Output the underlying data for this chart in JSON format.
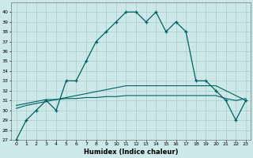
{
  "xlabel": "Humidex (Indice chaleur)",
  "background_color": "#cce8e8",
  "grid_color": "#aacccc",
  "line_color": "#006060",
  "x_values": [
    0,
    1,
    2,
    3,
    4,
    5,
    6,
    7,
    8,
    9,
    10,
    11,
    12,
    13,
    14,
    15,
    16,
    17,
    18,
    19,
    20,
    21,
    22,
    23
  ],
  "y_main": [
    27,
    29,
    30,
    31,
    30,
    33,
    33,
    35,
    37,
    38,
    39,
    40,
    40,
    39,
    40,
    38,
    39,
    38,
    33,
    33,
    32,
    31,
    29,
    31
  ],
  "y_reg1": [
    30.2,
    30.5,
    30.7,
    30.9,
    31.1,
    31.3,
    31.5,
    31.7,
    31.9,
    32.1,
    32.3,
    32.5,
    32.5,
    32.5,
    32.5,
    32.5,
    32.5,
    32.5,
    32.5,
    32.5,
    32.5,
    32.0,
    31.5,
    31.0
  ],
  "y_reg2": [
    30.5,
    30.7,
    30.9,
    31.1,
    31.1,
    31.2,
    31.2,
    31.3,
    31.3,
    31.4,
    31.4,
    31.5,
    31.5,
    31.5,
    31.5,
    31.5,
    31.5,
    31.5,
    31.5,
    31.5,
    31.5,
    31.2,
    31.0,
    31.2
  ],
  "ylim": [
    27,
    41
  ],
  "xlim": [
    -0.5,
    23.5
  ],
  "yticks": [
    27,
    28,
    29,
    30,
    31,
    32,
    33,
    34,
    35,
    36,
    37,
    38,
    39,
    40
  ],
  "xticks": [
    0,
    1,
    2,
    3,
    4,
    5,
    6,
    7,
    8,
    9,
    10,
    11,
    12,
    13,
    14,
    15,
    16,
    17,
    18,
    19,
    20,
    21,
    22,
    23
  ]
}
